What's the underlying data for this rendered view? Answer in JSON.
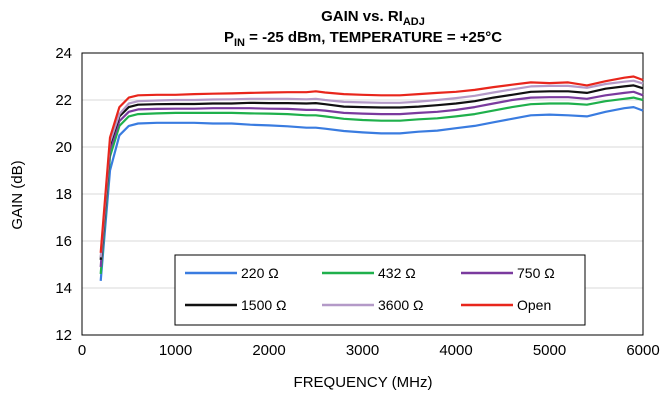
{
  "chart_data": {
    "type": "line",
    "title": {
      "line1_main": "GAIN vs. RI",
      "line1_sub": "ADJ",
      "line2_main": "P",
      "line2_sub": "IN",
      "line2_rest": " = -25 dBm, TEMPERATURE = +25°C"
    },
    "xlabel": "FREQUENCY (MHz)",
    "ylabel": "GAIN (dB)",
    "xlim": [
      0,
      6000
    ],
    "ylim": [
      12,
      24
    ],
    "xticks": [
      0,
      1000,
      2000,
      3000,
      4000,
      5000,
      6000
    ],
    "yticks": [
      12,
      14,
      16,
      18,
      20,
      22,
      24
    ],
    "grid": "horizontal",
    "legend": {
      "placement": "bottom-center",
      "columns": 3
    },
    "x": [
      200,
      300,
      400,
      500,
      600,
      800,
      1000,
      1200,
      1400,
      1600,
      1800,
      2000,
      2200,
      2400,
      2500,
      2600,
      2800,
      3000,
      3200,
      3400,
      3600,
      3800,
      4000,
      4200,
      4400,
      4600,
      4800,
      5000,
      5200,
      5400,
      5600,
      5800,
      5900,
      6000
    ],
    "series": [
      {
        "name": "220 Ω",
        "color": "#3a7ce0",
        "values": [
          14.3,
          19.0,
          20.5,
          20.9,
          21.0,
          21.03,
          21.03,
          21.03,
          21.0,
          21.0,
          20.95,
          20.92,
          20.88,
          20.82,
          20.82,
          20.78,
          20.68,
          20.62,
          20.58,
          20.58,
          20.65,
          20.7,
          20.8,
          20.9,
          21.05,
          21.2,
          21.35,
          21.38,
          21.35,
          21.3,
          21.5,
          21.65,
          21.7,
          21.55
        ]
      },
      {
        "name": "432 Ω",
        "color": "#1fb04c",
        "values": [
          14.6,
          19.6,
          20.9,
          21.3,
          21.4,
          21.43,
          21.45,
          21.45,
          21.45,
          21.45,
          21.43,
          21.42,
          21.4,
          21.35,
          21.35,
          21.3,
          21.2,
          21.15,
          21.12,
          21.12,
          21.18,
          21.22,
          21.3,
          21.4,
          21.55,
          21.7,
          21.82,
          21.85,
          21.85,
          21.8,
          21.95,
          22.05,
          22.1,
          22.0
        ]
      },
      {
        "name": "750 Ω",
        "color": "#7a3a9e",
        "values": [
          14.9,
          19.9,
          21.1,
          21.5,
          21.6,
          21.62,
          21.63,
          21.63,
          21.65,
          21.65,
          21.65,
          21.63,
          21.62,
          21.58,
          21.58,
          21.55,
          21.45,
          21.42,
          21.4,
          21.4,
          21.45,
          21.5,
          21.58,
          21.7,
          21.85,
          22.0,
          22.1,
          22.12,
          22.12,
          22.05,
          22.2,
          22.3,
          22.35,
          22.2
        ]
      },
      {
        "name": "1500 Ω",
        "color": "#111111",
        "values": [
          15.2,
          20.1,
          21.3,
          21.7,
          21.8,
          21.82,
          21.83,
          21.83,
          21.85,
          21.85,
          21.88,
          21.87,
          21.87,
          21.85,
          21.87,
          21.82,
          21.72,
          21.7,
          21.68,
          21.68,
          21.72,
          21.78,
          21.85,
          21.95,
          22.1,
          22.22,
          22.35,
          22.37,
          22.37,
          22.3,
          22.48,
          22.58,
          22.62,
          22.5
        ]
      },
      {
        "name": "3600 Ω",
        "color": "#b49ac8",
        "values": [
          15.3,
          20.2,
          21.4,
          21.85,
          21.95,
          21.98,
          22.0,
          22.0,
          22.02,
          22.03,
          22.05,
          22.05,
          22.05,
          22.03,
          22.05,
          22.0,
          21.92,
          21.9,
          21.88,
          21.88,
          21.93,
          22.0,
          22.08,
          22.18,
          22.32,
          22.45,
          22.58,
          22.6,
          22.6,
          22.52,
          22.68,
          22.78,
          22.82,
          22.7
        ]
      },
      {
        "name": "Open",
        "color": "#e8261c",
        "values": [
          15.5,
          20.4,
          21.7,
          22.1,
          22.2,
          22.22,
          22.22,
          22.25,
          22.27,
          22.28,
          22.3,
          22.32,
          22.33,
          22.33,
          22.37,
          22.32,
          22.25,
          22.22,
          22.2,
          22.2,
          22.25,
          22.3,
          22.35,
          22.43,
          22.55,
          22.65,
          22.75,
          22.72,
          22.75,
          22.62,
          22.8,
          22.95,
          23.0,
          22.85
        ]
      }
    ]
  }
}
